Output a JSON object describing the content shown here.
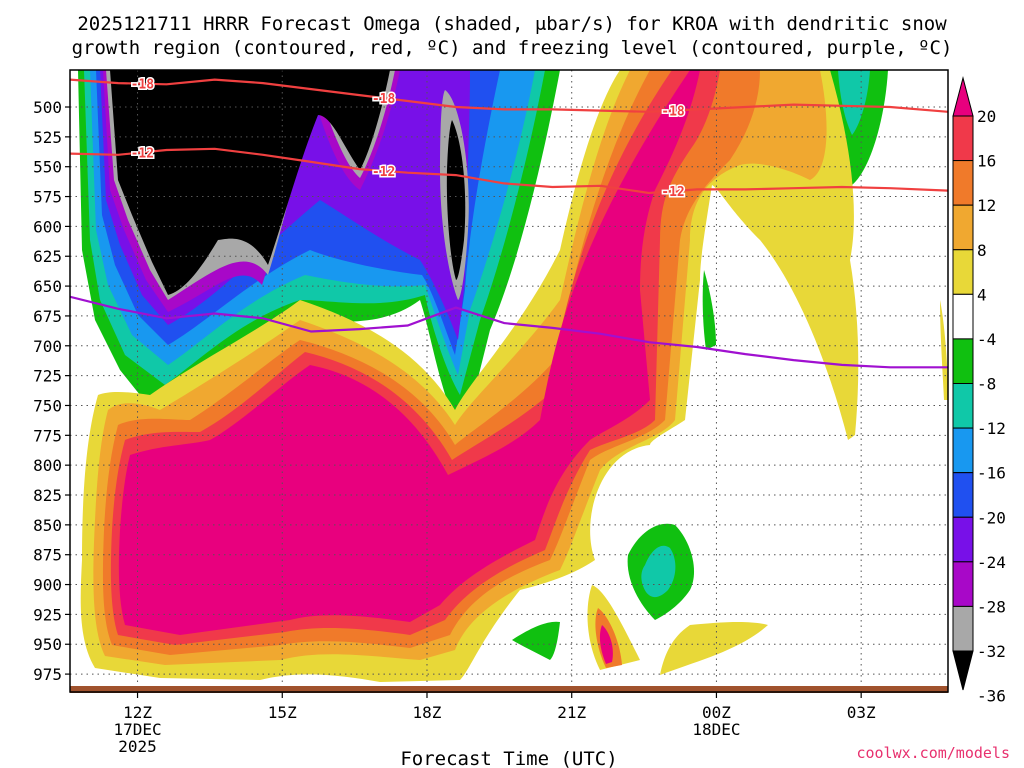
{
  "chart_data": {
    "type": "heatmap",
    "title_line1": "2025121711 HRRR Forecast Omega (shaded, μbar/s) for KROA with dendritic snow",
    "title_line2": "growth region (contoured, red, ºC) and freezing level (contoured, purple, ºC)",
    "xlabel": "Forecast Time (UTC)",
    "credit": "coolwx.com/models",
    "x_range_hours": [
      10.6,
      28.8
    ],
    "y_range_mb": [
      469,
      990
    ],
    "x_ticks": [
      {
        "hour": 12,
        "lines": [
          "12Z",
          "17DEC",
          "2025"
        ]
      },
      {
        "hour": 15,
        "lines": [
          "15Z"
        ]
      },
      {
        "hour": 18,
        "lines": [
          "18Z"
        ]
      },
      {
        "hour": 21,
        "lines": [
          "21Z"
        ]
      },
      {
        "hour": 24,
        "lines": [
          "00Z",
          "18DEC"
        ]
      },
      {
        "hour": 27,
        "lines": [
          "03Z"
        ]
      }
    ],
    "y_ticks": [
      500,
      525,
      550,
      575,
      600,
      625,
      650,
      675,
      700,
      725,
      750,
      775,
      800,
      825,
      850,
      875,
      900,
      925,
      950,
      975
    ],
    "colorbar": {
      "labels": [
        "20",
        "16",
        "12",
        "8",
        "4",
        "-4",
        "-8",
        "-12",
        "-16",
        "-20",
        "-24",
        "-28",
        "-32",
        "-36"
      ],
      "colors": [
        "#e8007e",
        "#f0394a",
        "#f07a2a",
        "#f0a830",
        "#e8d838",
        "#ffffff",
        "#10c010",
        "#10c8a8",
        "#1898f0",
        "#2050f0",
        "#7810e8",
        "#a808c8",
        "#a8a8a8",
        "#000000"
      ]
    },
    "series": [
      {
        "name": "-18C isotherm",
        "color": "#f04040",
        "label": "-18",
        "points": [
          [
            10.6,
            477
          ],
          [
            11.6,
            480
          ],
          [
            12.6,
            481
          ],
          [
            13.6,
            477
          ],
          [
            14.6,
            480
          ],
          [
            15.6,
            485
          ],
          [
            16.6,
            490
          ],
          [
            17.6,
            495
          ],
          [
            18.6,
            500
          ],
          [
            19.6,
            502
          ],
          [
            20.6,
            502
          ],
          [
            21.6,
            503
          ],
          [
            22.6,
            504
          ],
          [
            23.6,
            502
          ],
          [
            24.6,
            500
          ],
          [
            25.6,
            498
          ],
          [
            26.6,
            499
          ],
          [
            27.6,
            500
          ],
          [
            28.8,
            504
          ]
        ]
      },
      {
        "name": "-12C isotherm",
        "color": "#f04040",
        "label": "-12",
        "points": [
          [
            10.6,
            539
          ],
          [
            11.6,
            540
          ],
          [
            12.6,
            536
          ],
          [
            13.6,
            535
          ],
          [
            14.6,
            540
          ],
          [
            15.6,
            546
          ],
          [
            16.6,
            552
          ],
          [
            17.6,
            555
          ],
          [
            18.6,
            557
          ],
          [
            19.6,
            564
          ],
          [
            20.6,
            567
          ],
          [
            21.6,
            566
          ],
          [
            22.6,
            572
          ],
          [
            23.6,
            569
          ],
          [
            24.6,
            569
          ],
          [
            25.6,
            568
          ],
          [
            26.6,
            567
          ],
          [
            27.6,
            568
          ],
          [
            28.8,
            570
          ]
        ]
      },
      {
        "name": "0C freezing level",
        "color": "#a010d0",
        "points": [
          [
            10.6,
            659
          ],
          [
            11.6,
            669
          ],
          [
            12.6,
            677
          ],
          [
            13.6,
            673
          ],
          [
            14.6,
            677
          ],
          [
            15.6,
            688
          ],
          [
            16.6,
            686
          ],
          [
            17.6,
            683
          ],
          [
            18.6,
            668
          ],
          [
            19.6,
            681
          ],
          [
            20.6,
            685
          ],
          [
            21.6,
            690
          ],
          [
            22.6,
            697
          ],
          [
            23.6,
            701
          ],
          [
            24.6,
            707
          ],
          [
            25.6,
            712
          ],
          [
            26.6,
            716
          ],
          [
            27.6,
            718
          ],
          [
            28.8,
            718
          ]
        ]
      }
    ]
  }
}
